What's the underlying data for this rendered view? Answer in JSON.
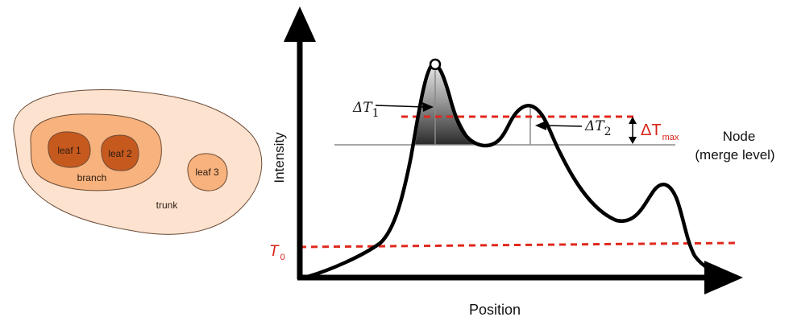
{
  "dendrogram": {
    "leaf1": "leaf 1",
    "leaf2": "leaf 2",
    "leaf3": "leaf 3",
    "branch": "branch",
    "trunk": "trunk"
  },
  "plot": {
    "ylabel": "Intensity",
    "xlabel": "Position",
    "t0_symbol": "T",
    "t0_sub": "0",
    "dt1_symbol": "ΔT",
    "dt1_sub": "1",
    "dt2_symbol": "ΔT",
    "dt2_sub": "2",
    "dtmax_symbol": "ΔT",
    "dtmax_sub": "max",
    "node_line1": "Node",
    "node_line2": "(merge level)"
  },
  "colors": {
    "trunk": "#fde3cf",
    "branch": "#f7b27d",
    "leaf": "#c65a1e",
    "leaf3": "#f7b27d",
    "outline": "#6b4a36",
    "curve": "#000000",
    "threshold": "#e0281d",
    "merge_line": "#8a8a8a",
    "red_label": "#d92318"
  }
}
